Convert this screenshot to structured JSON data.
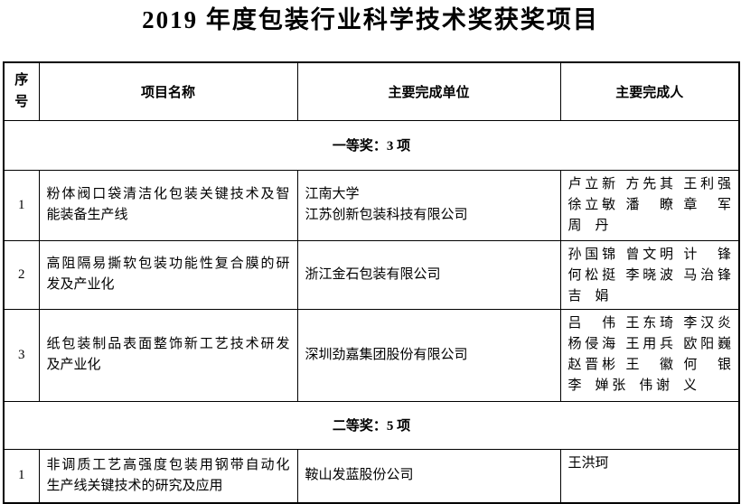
{
  "page": {
    "title": "2019 年度包装行业科学技术奖获奖项目"
  },
  "table": {
    "headers": {
      "num": "序号",
      "project": "项目名称",
      "unit": "主要完成单位",
      "person": "主要完成人"
    },
    "sections": [
      {
        "label": "一等奖：3 项",
        "rows": [
          {
            "num": "1",
            "project": [
              "粉体阀口袋清洁化包装关键技术及智",
              "能装备生产线"
            ],
            "unit": [
              "江南大学",
              "江苏创新包装科技有限公司"
            ],
            "persons": [
              "卢立新 方先其 王利强",
              "徐立敏 潘　瞭 章　军",
              "周　丹"
            ]
          },
          {
            "num": "2",
            "project": [
              "高阻隔易撕软包装功能性复合膜的研",
              "发及产业化"
            ],
            "unit": [
              "浙江金石包装有限公司"
            ],
            "persons": [
              "孙国锦 曾文明 计　锋",
              "何松挺 李晓波 马治锋",
              "吉　娟"
            ]
          },
          {
            "num": "3",
            "project": [
              "纸包装制品表面整饰新工艺技术研发",
              "及产业化"
            ],
            "unit": [
              "深圳劲嘉集团股份有限公司"
            ],
            "persons": [
              "吕　伟 王东琦 李汉炎",
              "杨侵海 王用兵 欧阳巍",
              "赵晋彬 王　徽 何　银",
              "李　婵 张　伟 谢　义"
            ]
          }
        ]
      },
      {
        "label": "二等奖：5 项",
        "rows": [
          {
            "num": "1",
            "project": [
              "非调质工艺高强度包装用钢带自动化",
              "生产线关键技术的研究及应用"
            ],
            "unit": [
              "鞍山发蓝股份公司"
            ],
            "persons": [
              "王洪珂"
            ]
          }
        ]
      }
    ]
  },
  "colors": {
    "text": "#000000",
    "border": "#000000",
    "background": "#ffffff"
  }
}
